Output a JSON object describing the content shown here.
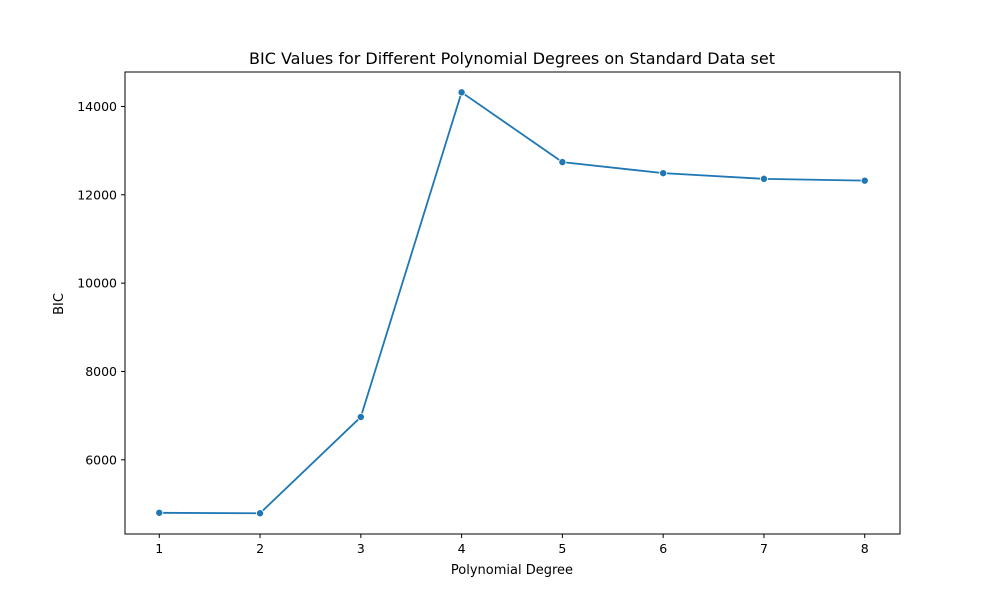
{
  "chart_data": {
    "type": "line",
    "title": "BIC Values for Different Polynomial Degrees on Standard Data set",
    "xlabel": "Polynomial Degree",
    "ylabel": "BIC",
    "x": [
      1,
      2,
      3,
      4,
      5,
      6,
      7,
      8
    ],
    "series": [
      {
        "values": [
          4800,
          4790,
          6970,
          14320,
          12740,
          12490,
          12360,
          12320
        ],
        "color": "#1f77b4",
        "marker": "circle"
      }
    ],
    "xlim": [
      0.66,
      8.35
    ],
    "ylim": [
      4320,
      14780
    ],
    "xticks": [
      1,
      2,
      3,
      4,
      5,
      6,
      7,
      8
    ],
    "yticks": [
      6000,
      8000,
      10000,
      12000,
      14000
    ],
    "grid": false,
    "legend": "none"
  }
}
